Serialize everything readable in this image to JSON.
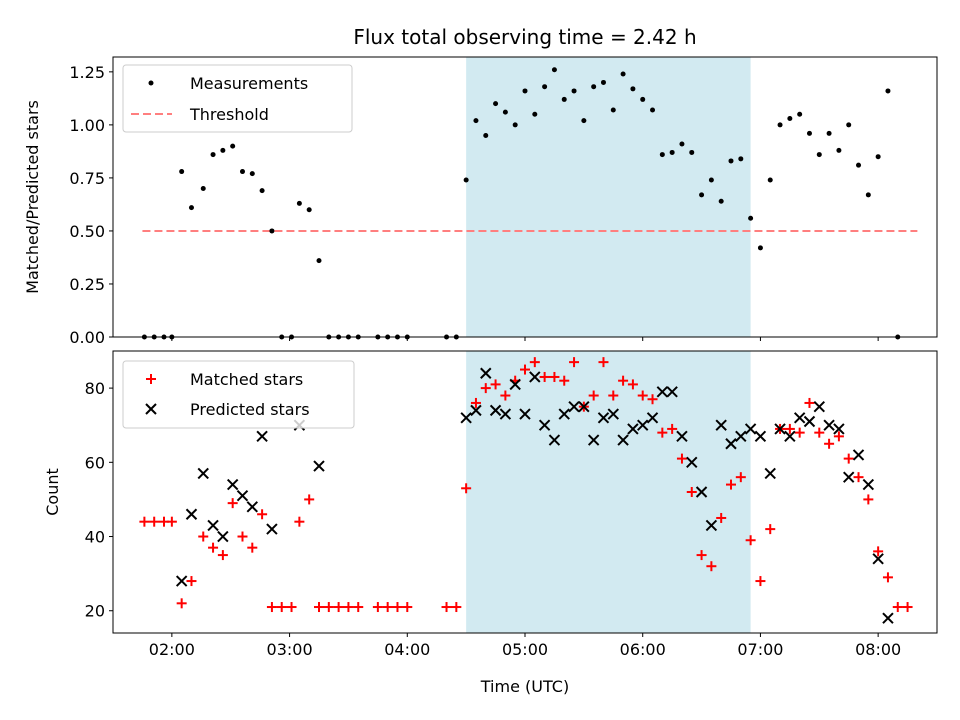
{
  "title": "Flux total observing time = 2.42 h",
  "colors": {
    "measurement": "#000000",
    "threshold": "#ff7f7f",
    "matched": "#ff0000",
    "predicted": "#000000",
    "shade": "#add8e6"
  },
  "chart_data": [
    {
      "type": "scatter",
      "ylabel": "Matched/Predicted stars",
      "ylim": [
        0,
        1.32
      ],
      "yticks": [
        "0.00",
        "0.25",
        "0.50",
        "0.75",
        "1.00",
        "1.25"
      ],
      "ytick_values": [
        0,
        0.25,
        0.5,
        0.75,
        1.0,
        1.25
      ],
      "legend": {
        "position": "top-left",
        "entries": [
          "Measurements",
          "Threshold"
        ]
      },
      "shaded_span": [
        "04:30",
        "06:55"
      ],
      "threshold": {
        "name": "Threshold",
        "value": 0.5,
        "x_range": [
          "01:45",
          "08:20"
        ]
      },
      "series": [
        {
          "name": "Measurements",
          "points": [
            [
              "01:46",
              0
            ],
            [
              "01:51",
              0
            ],
            [
              "01:56",
              0
            ],
            [
              "02:00",
              0
            ],
            [
              "02:05",
              0.78
            ],
            [
              "02:10",
              0.61
            ],
            [
              "02:16",
              0.7
            ],
            [
              "02:21",
              0.86
            ],
            [
              "02:26",
              0.88
            ],
            [
              "02:31",
              0.9
            ],
            [
              "02:36",
              0.78
            ],
            [
              "02:41",
              0.77
            ],
            [
              "02:46",
              0.69
            ],
            [
              "02:51",
              0.5
            ],
            [
              "02:56",
              0
            ],
            [
              "03:01",
              0
            ],
            [
              "03:05",
              0.63
            ],
            [
              "03:10",
              0.6
            ],
            [
              "03:15",
              0.36
            ],
            [
              "03:20",
              0
            ],
            [
              "03:25",
              0
            ],
            [
              "03:30",
              0
            ],
            [
              "03:35",
              0
            ],
            [
              "03:45",
              0
            ],
            [
              "03:50",
              0
            ],
            [
              "03:55",
              0
            ],
            [
              "04:00",
              0
            ],
            [
              "04:20",
              0
            ],
            [
              "04:25",
              0
            ],
            [
              "04:30",
              0.74
            ],
            [
              "04:35",
              1.02
            ],
            [
              "04:40",
              0.95
            ],
            [
              "04:45",
              1.1
            ],
            [
              "04:50",
              1.06
            ],
            [
              "04:55",
              1.0
            ],
            [
              "05:00",
              1.16
            ],
            [
              "05:05",
              1.05
            ],
            [
              "05:10",
              1.18
            ],
            [
              "05:15",
              1.26
            ],
            [
              "05:20",
              1.12
            ],
            [
              "05:25",
              1.16
            ],
            [
              "05:30",
              1.02
            ],
            [
              "05:35",
              1.18
            ],
            [
              "05:40",
              1.2
            ],
            [
              "05:45",
              1.07
            ],
            [
              "05:50",
              1.24
            ],
            [
              "05:55",
              1.17
            ],
            [
              "06:00",
              1.12
            ],
            [
              "06:05",
              1.07
            ],
            [
              "06:10",
              0.86
            ],
            [
              "06:15",
              0.87
            ],
            [
              "06:20",
              0.91
            ],
            [
              "06:25",
              0.87
            ],
            [
              "06:30",
              0.67
            ],
            [
              "06:35",
              0.74
            ],
            [
              "06:40",
              0.64
            ],
            [
              "06:45",
              0.83
            ],
            [
              "06:50",
              0.84
            ],
            [
              "06:55",
              0.56
            ],
            [
              "07:00",
              0.42
            ],
            [
              "07:05",
              0.74
            ],
            [
              "07:10",
              1.0
            ],
            [
              "07:15",
              1.03
            ],
            [
              "07:20",
              1.05
            ],
            [
              "07:25",
              0.96
            ],
            [
              "07:30",
              0.86
            ],
            [
              "07:35",
              0.96
            ],
            [
              "07:40",
              0.88
            ],
            [
              "07:45",
              1.0
            ],
            [
              "07:50",
              0.81
            ],
            [
              "07:55",
              0.67
            ],
            [
              "08:00",
              0.85
            ],
            [
              "08:05",
              1.16
            ],
            [
              "08:10",
              0
            ]
          ]
        }
      ]
    },
    {
      "type": "scatter",
      "xlabel": "Time (UTC)",
      "ylabel": "Count",
      "ylim": [
        14,
        90
      ],
      "yticks": [
        "20",
        "40",
        "60",
        "80"
      ],
      "ytick_values": [
        20,
        40,
        60,
        80
      ],
      "xticks": [
        "02:00",
        "03:00",
        "04:00",
        "05:00",
        "06:00",
        "07:00",
        "08:00"
      ],
      "xlim": [
        "01:30",
        "08:30"
      ],
      "legend": {
        "position": "top-left",
        "entries": [
          "Matched stars",
          "Predicted stars"
        ]
      },
      "shaded_span": [
        "04:30",
        "06:55"
      ],
      "series": [
        {
          "name": "Matched stars",
          "points": [
            [
              "01:46",
              44
            ],
            [
              "01:51",
              44
            ],
            [
              "01:56",
              44
            ],
            [
              "02:00",
              44
            ],
            [
              "02:05",
              22
            ],
            [
              "02:10",
              28
            ],
            [
              "02:16",
              40
            ],
            [
              "02:21",
              37
            ],
            [
              "02:26",
              35
            ],
            [
              "02:31",
              49
            ],
            [
              "02:36",
              40
            ],
            [
              "02:41",
              37
            ],
            [
              "02:46",
              46
            ],
            [
              "02:51",
              21
            ],
            [
              "02:56",
              21
            ],
            [
              "03:01",
              21
            ],
            [
              "03:05",
              44
            ],
            [
              "03:10",
              50
            ],
            [
              "03:15",
              21
            ],
            [
              "03:20",
              21
            ],
            [
              "03:25",
              21
            ],
            [
              "03:30",
              21
            ],
            [
              "03:35",
              21
            ],
            [
              "03:45",
              21
            ],
            [
              "03:50",
              21
            ],
            [
              "03:55",
              21
            ],
            [
              "04:00",
              21
            ],
            [
              "04:20",
              21
            ],
            [
              "04:25",
              21
            ],
            [
              "04:30",
              53
            ],
            [
              "04:35",
              76
            ],
            [
              "04:40",
              80
            ],
            [
              "04:45",
              81
            ],
            [
              "04:50",
              78
            ],
            [
              "04:55",
              82
            ],
            [
              "05:00",
              85
            ],
            [
              "05:05",
              87
            ],
            [
              "05:10",
              83
            ],
            [
              "05:15",
              83
            ],
            [
              "05:20",
              82
            ],
            [
              "05:25",
              87
            ],
            [
              "05:30",
              75
            ],
            [
              "05:35",
              78
            ],
            [
              "05:40",
              87
            ],
            [
              "05:45",
              78
            ],
            [
              "05:50",
              82
            ],
            [
              "05:55",
              81
            ],
            [
              "06:00",
              78
            ],
            [
              "06:05",
              77
            ],
            [
              "06:10",
              68
            ],
            [
              "06:15",
              69
            ],
            [
              "06:20",
              61
            ],
            [
              "06:25",
              52
            ],
            [
              "06:30",
              35
            ],
            [
              "06:35",
              32
            ],
            [
              "06:40",
              45
            ],
            [
              "06:45",
              54
            ],
            [
              "06:50",
              56
            ],
            [
              "06:55",
              39
            ],
            [
              "07:00",
              28
            ],
            [
              "07:05",
              42
            ],
            [
              "07:10",
              69
            ],
            [
              "07:15",
              69
            ],
            [
              "07:20",
              68
            ],
            [
              "07:25",
              76
            ],
            [
              "07:30",
              68
            ],
            [
              "07:35",
              65
            ],
            [
              "07:40",
              67
            ],
            [
              "07:45",
              61
            ],
            [
              "07:50",
              56
            ],
            [
              "07:55",
              50
            ],
            [
              "08:00",
              36
            ],
            [
              "08:05",
              29
            ],
            [
              "08:10",
              21
            ],
            [
              "08:15",
              21
            ]
          ]
        },
        {
          "name": "Predicted stars",
          "points": [
            [
              "02:05",
              28
            ],
            [
              "02:10",
              46
            ],
            [
              "02:16",
              57
            ],
            [
              "02:21",
              43
            ],
            [
              "02:26",
              40
            ],
            [
              "02:31",
              54
            ],
            [
              "02:36",
              51
            ],
            [
              "02:41",
              48
            ],
            [
              "02:46",
              67
            ],
            [
              "02:51",
              42
            ],
            [
              "03:05",
              70
            ],
            [
              "03:15",
              59
            ],
            [
              "04:30",
              72
            ],
            [
              "04:35",
              74
            ],
            [
              "04:40",
              84
            ],
            [
              "04:45",
              74
            ],
            [
              "04:50",
              73
            ],
            [
              "04:55",
              81
            ],
            [
              "05:00",
              73
            ],
            [
              "05:05",
              83
            ],
            [
              "05:10",
              70
            ],
            [
              "05:15",
              66
            ],
            [
              "05:20",
              73
            ],
            [
              "05:25",
              75
            ],
            [
              "05:30",
              75
            ],
            [
              "05:35",
              66
            ],
            [
              "05:40",
              72
            ],
            [
              "05:45",
              73
            ],
            [
              "05:50",
              66
            ],
            [
              "05:55",
              69
            ],
            [
              "06:00",
              70
            ],
            [
              "06:05",
              72
            ],
            [
              "06:10",
              79
            ],
            [
              "06:15",
              79
            ],
            [
              "06:20",
              67
            ],
            [
              "06:25",
              60
            ],
            [
              "06:30",
              52
            ],
            [
              "06:35",
              43
            ],
            [
              "06:40",
              70
            ],
            [
              "06:45",
              65
            ],
            [
              "06:50",
              67
            ],
            [
              "06:55",
              69
            ],
            [
              "07:00",
              67
            ],
            [
              "07:05",
              57
            ],
            [
              "07:10",
              69
            ],
            [
              "07:15",
              67
            ],
            [
              "07:20",
              72
            ],
            [
              "07:25",
              71
            ],
            [
              "07:30",
              75
            ],
            [
              "07:35",
              70
            ],
            [
              "07:40",
              69
            ],
            [
              "07:45",
              56
            ],
            [
              "07:50",
              62
            ],
            [
              "07:55",
              54
            ],
            [
              "08:00",
              34
            ],
            [
              "08:05",
              18
            ]
          ]
        }
      ]
    }
  ]
}
